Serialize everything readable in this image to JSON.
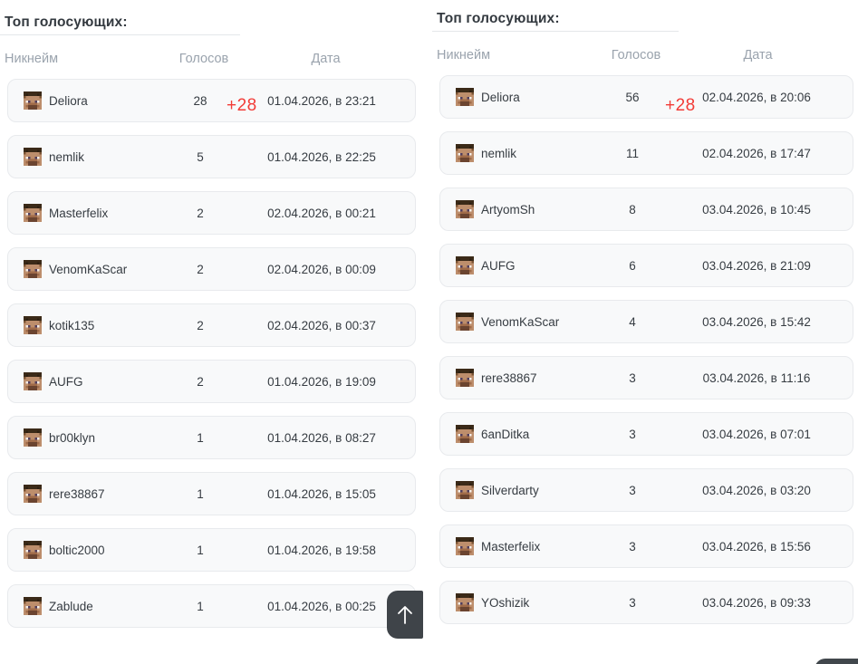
{
  "panels": [
    {
      "title": "Топ голосующих:",
      "columns": {
        "nickname": "Никнейм",
        "votes": "Голосов",
        "date": "Дата"
      },
      "delta_badge": "+28",
      "rows": [
        {
          "name": "Deliora",
          "votes": "28",
          "date": "01.04.2026, в 23:21"
        },
        {
          "name": "nemlik",
          "votes": "5",
          "date": "01.04.2026, в 22:25"
        },
        {
          "name": "Masterfelix",
          "votes": "2",
          "date": "02.04.2026, в 00:21"
        },
        {
          "name": "VenomKaScar",
          "votes": "2",
          "date": "02.04.2026, в 00:09"
        },
        {
          "name": "kotik135",
          "votes": "2",
          "date": "02.04.2026, в 00:37"
        },
        {
          "name": "AUFG",
          "votes": "2",
          "date": "01.04.2026, в 19:09"
        },
        {
          "name": "br00klyn",
          "votes": "1",
          "date": "01.04.2026, в 08:27"
        },
        {
          "name": "rere38867",
          "votes": "1",
          "date": "01.04.2026, в 15:05"
        },
        {
          "name": "boltic2000",
          "votes": "1",
          "date": "01.04.2026, в 19:58"
        },
        {
          "name": "Zablude",
          "votes": "1",
          "date": "01.04.2026, в 00:25"
        }
      ]
    },
    {
      "title": "Топ голосующих:",
      "columns": {
        "nickname": "Никнейм",
        "votes": "Голосов",
        "date": "Дата"
      },
      "delta_badge": "+28",
      "rows": [
        {
          "name": "Deliora",
          "votes": "56",
          "date": "02.04.2026, в 20:06"
        },
        {
          "name": "nemlik",
          "votes": "11",
          "date": "02.04.2026, в 17:47"
        },
        {
          "name": "ArtyomSh",
          "votes": "8",
          "date": "03.04.2026, в 10:45"
        },
        {
          "name": "AUFG",
          "votes": "6",
          "date": "03.04.2026, в 21:09"
        },
        {
          "name": "VenomKaScar",
          "votes": "4",
          "date": "03.04.2026, в 15:42"
        },
        {
          "name": "rere38867",
          "votes": "3",
          "date": "03.04.2026, в 11:16"
        },
        {
          "name": "6anDitka",
          "votes": "3",
          "date": "03.04.2026, в 07:01"
        },
        {
          "name": "Silverdarty",
          "votes": "3",
          "date": "03.04.2026, в 03:20"
        },
        {
          "name": "Masterfelix",
          "votes": "3",
          "date": "03.04.2026, в 15:56"
        },
        {
          "name": "YOshizik",
          "votes": "3",
          "date": "03.04.2026, в 09:33"
        }
      ]
    }
  ],
  "icons": {
    "scroll_top": "arrow-up",
    "avatar": "minecraft-steve-head"
  },
  "colors": {
    "delta_red": "#f23b36",
    "text_dark": "#363c42",
    "header_gray": "#9aa3ad",
    "card_bg": "#f8f9fa",
    "card_border": "#e8eaed",
    "button_dark": "#3f4449"
  }
}
